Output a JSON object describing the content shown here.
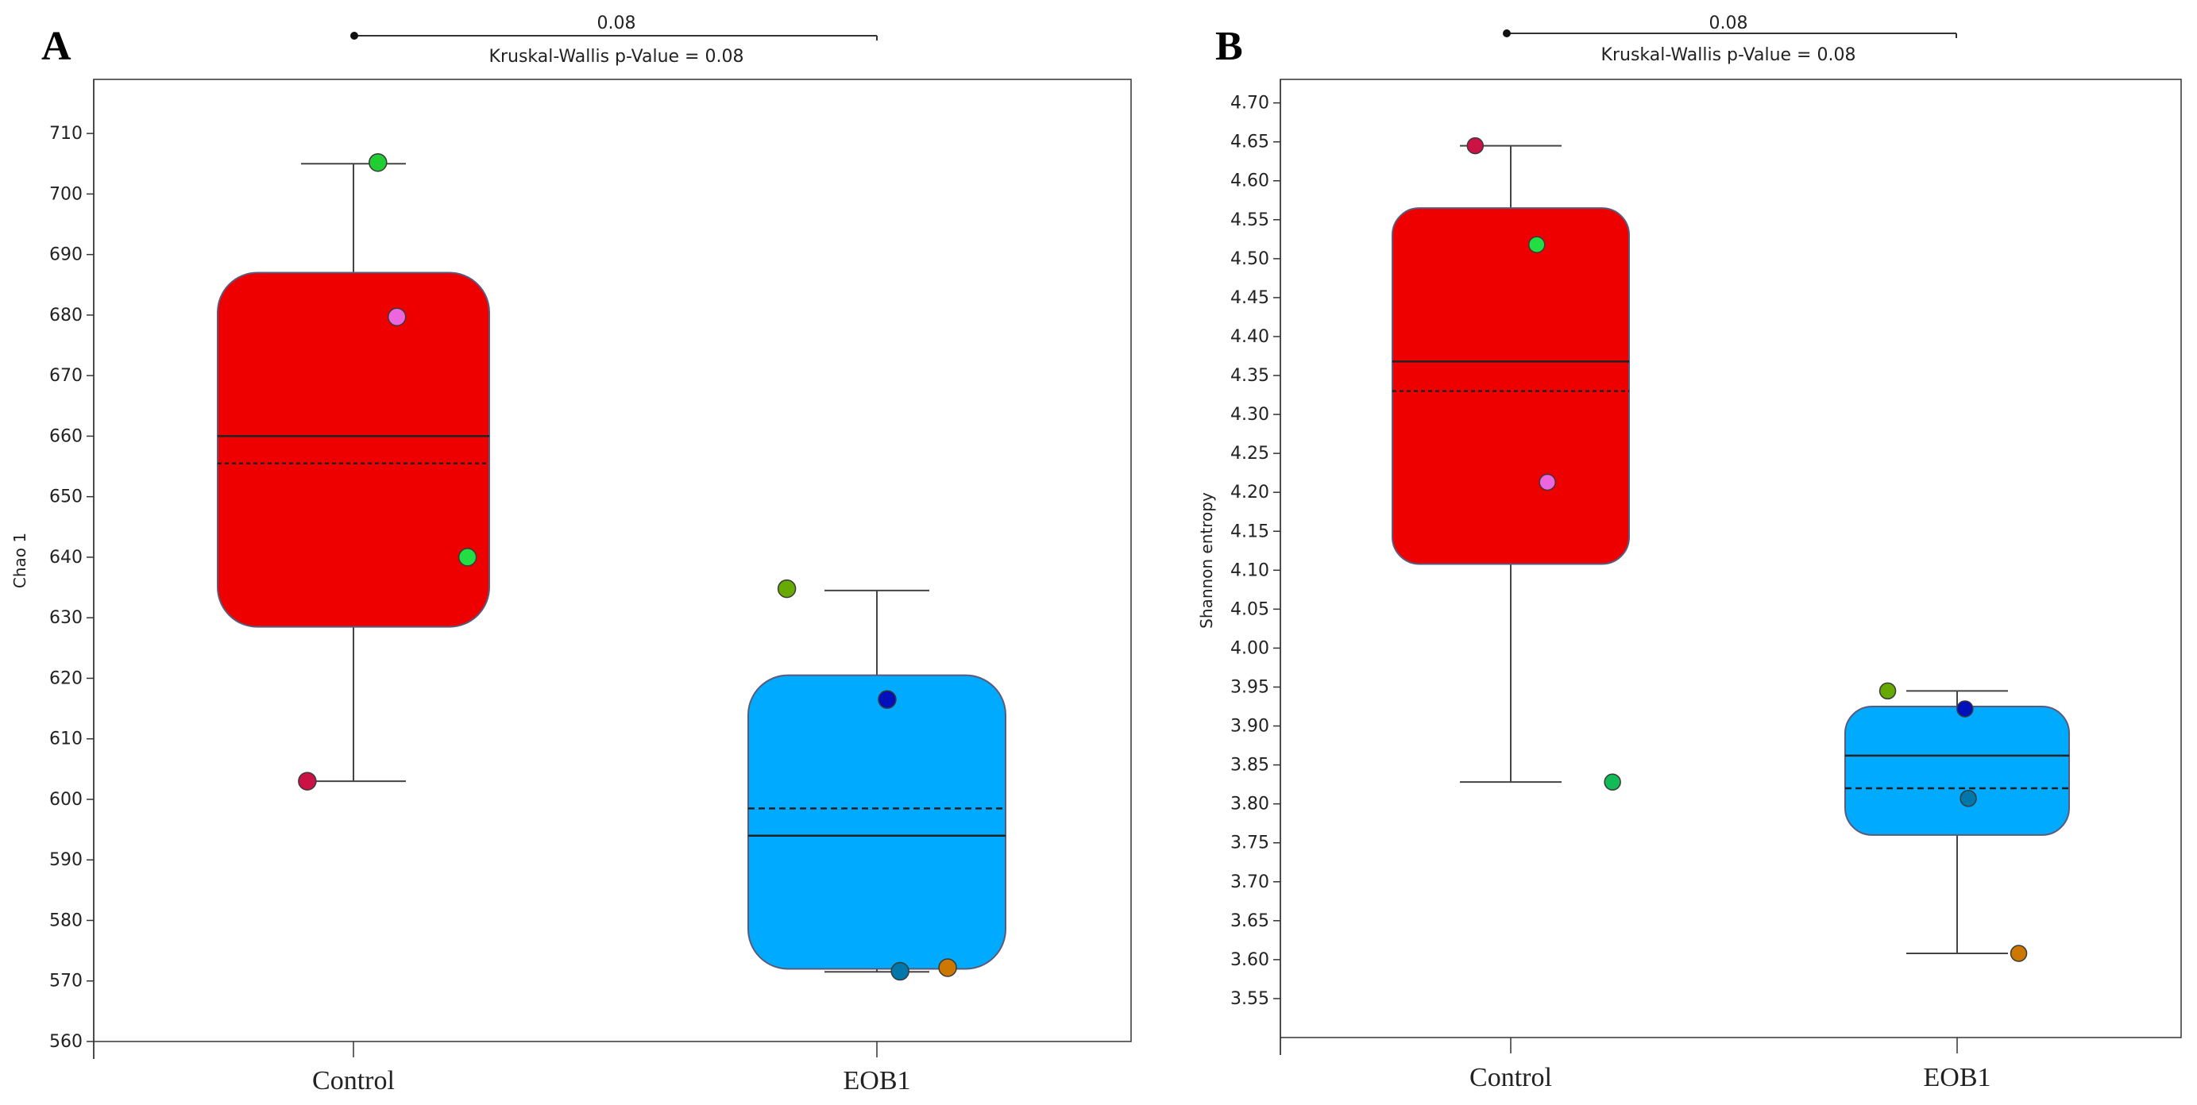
{
  "chart_data": [
    {
      "type": "box",
      "panel": "A",
      "ylabel": "Chao 1",
      "ylim": [
        560,
        715
      ],
      "yticks": [
        560,
        570,
        580,
        590,
        600,
        610,
        620,
        630,
        640,
        650,
        660,
        670,
        680,
        690,
        700,
        710
      ],
      "categories": [
        "Control",
        "EOB1"
      ],
      "significance": {
        "bracket_label": "0.08",
        "test_label": "Kruskal-Wallis p-Value = 0.08"
      },
      "boxes": [
        {
          "category": "Control",
          "color": "#ee0000",
          "whisker_low": 603,
          "q1": 628.5,
          "median": 660,
          "mean": 655.5,
          "q3": 687,
          "whisker_high": 705,
          "points": [
            {
              "x_offset": 0.18,
              "y": 705.2,
              "color": "#22cc33"
            },
            {
              "x_offset": 0.32,
              "y": 679.7,
              "color": "#ee66dd"
            },
            {
              "x_offset": 0.84,
              "y": 640.0,
              "color": "#22dd44"
            },
            {
              "x_offset": -0.34,
              "y": 603.0,
              "color": "#cc1144"
            }
          ]
        },
        {
          "category": "EOB1",
          "color": "#00aaff",
          "whisker_low": 571.5,
          "q1": 572,
          "median": 594,
          "mean": 598.5,
          "q3": 620.5,
          "whisker_high": 634.5,
          "points": [
            {
              "x_offset": -0.7,
              "y": 634.8,
              "color": "#66aa00"
            },
            {
              "x_offset": 0.08,
              "y": 616.5,
              "color": "#0011bb"
            },
            {
              "x_offset": 0.18,
              "y": 571.6,
              "color": "#0077aa"
            },
            {
              "x_offset": 0.55,
              "y": 572.2,
              "color": "#cc7700"
            }
          ]
        }
      ]
    },
    {
      "type": "box",
      "panel": "B",
      "ylabel": "Shannon entropy",
      "ylim": [
        3.5,
        4.72
      ],
      "yticks": [
        3.55,
        3.6,
        3.65,
        3.7,
        3.75,
        3.8,
        3.85,
        3.9,
        3.95,
        4.0,
        4.05,
        4.1,
        4.15,
        4.2,
        4.25,
        4.3,
        4.35,
        4.4,
        4.45,
        4.5,
        4.55,
        4.6,
        4.65,
        4.7
      ],
      "yticklabels": [
        "3.55",
        "3.60",
        "3.65",
        "3.70",
        "3.75",
        "3.80",
        "3.85",
        "3.90",
        "3.95",
        "4.00",
        "4.05",
        "4.10",
        "4.15",
        "4.20",
        "4.25",
        "4.30",
        "4.35",
        "4.40",
        "4.45",
        "4.50",
        "4.55",
        "4.60",
        "4.65",
        "4.70"
      ],
      "categories": [
        "Control",
        "EOB1"
      ],
      "significance": {
        "bracket_label": "0.08",
        "test_label": "Kruskal-Wallis p-Value = 0.08"
      },
      "boxes": [
        {
          "category": "Control",
          "color": "#ee0000",
          "whisker_low": 3.828,
          "q1": 4.108,
          "median": 4.368,
          "mean": 4.33,
          "q3": 4.565,
          "whisker_high": 4.645,
          "points": [
            {
              "x_offset": -0.3,
              "y": 4.645,
              "color": "#cc1144"
            },
            {
              "x_offset": 0.22,
              "y": 4.518,
              "color": "#22dd44"
            },
            {
              "x_offset": 0.31,
              "y": 4.213,
              "color": "#ee66dd"
            },
            {
              "x_offset": 0.86,
              "y": 3.828,
              "color": "#11bb55"
            }
          ]
        },
        {
          "category": "EOB1",
          "color": "#00aaff",
          "whisker_low": 3.608,
          "q1": 3.76,
          "median": 3.862,
          "mean": 3.82,
          "q3": 3.925,
          "whisker_high": 3.945,
          "points": [
            {
              "x_offset": -0.62,
              "y": 3.945,
              "color": "#66aa00"
            },
            {
              "x_offset": 0.07,
              "y": 3.922,
              "color": "#0011bb"
            },
            {
              "x_offset": 0.1,
              "y": 3.807,
              "color": "#0077aa"
            },
            {
              "x_offset": 0.55,
              "y": 3.608,
              "color": "#cc7700"
            }
          ]
        }
      ]
    }
  ]
}
